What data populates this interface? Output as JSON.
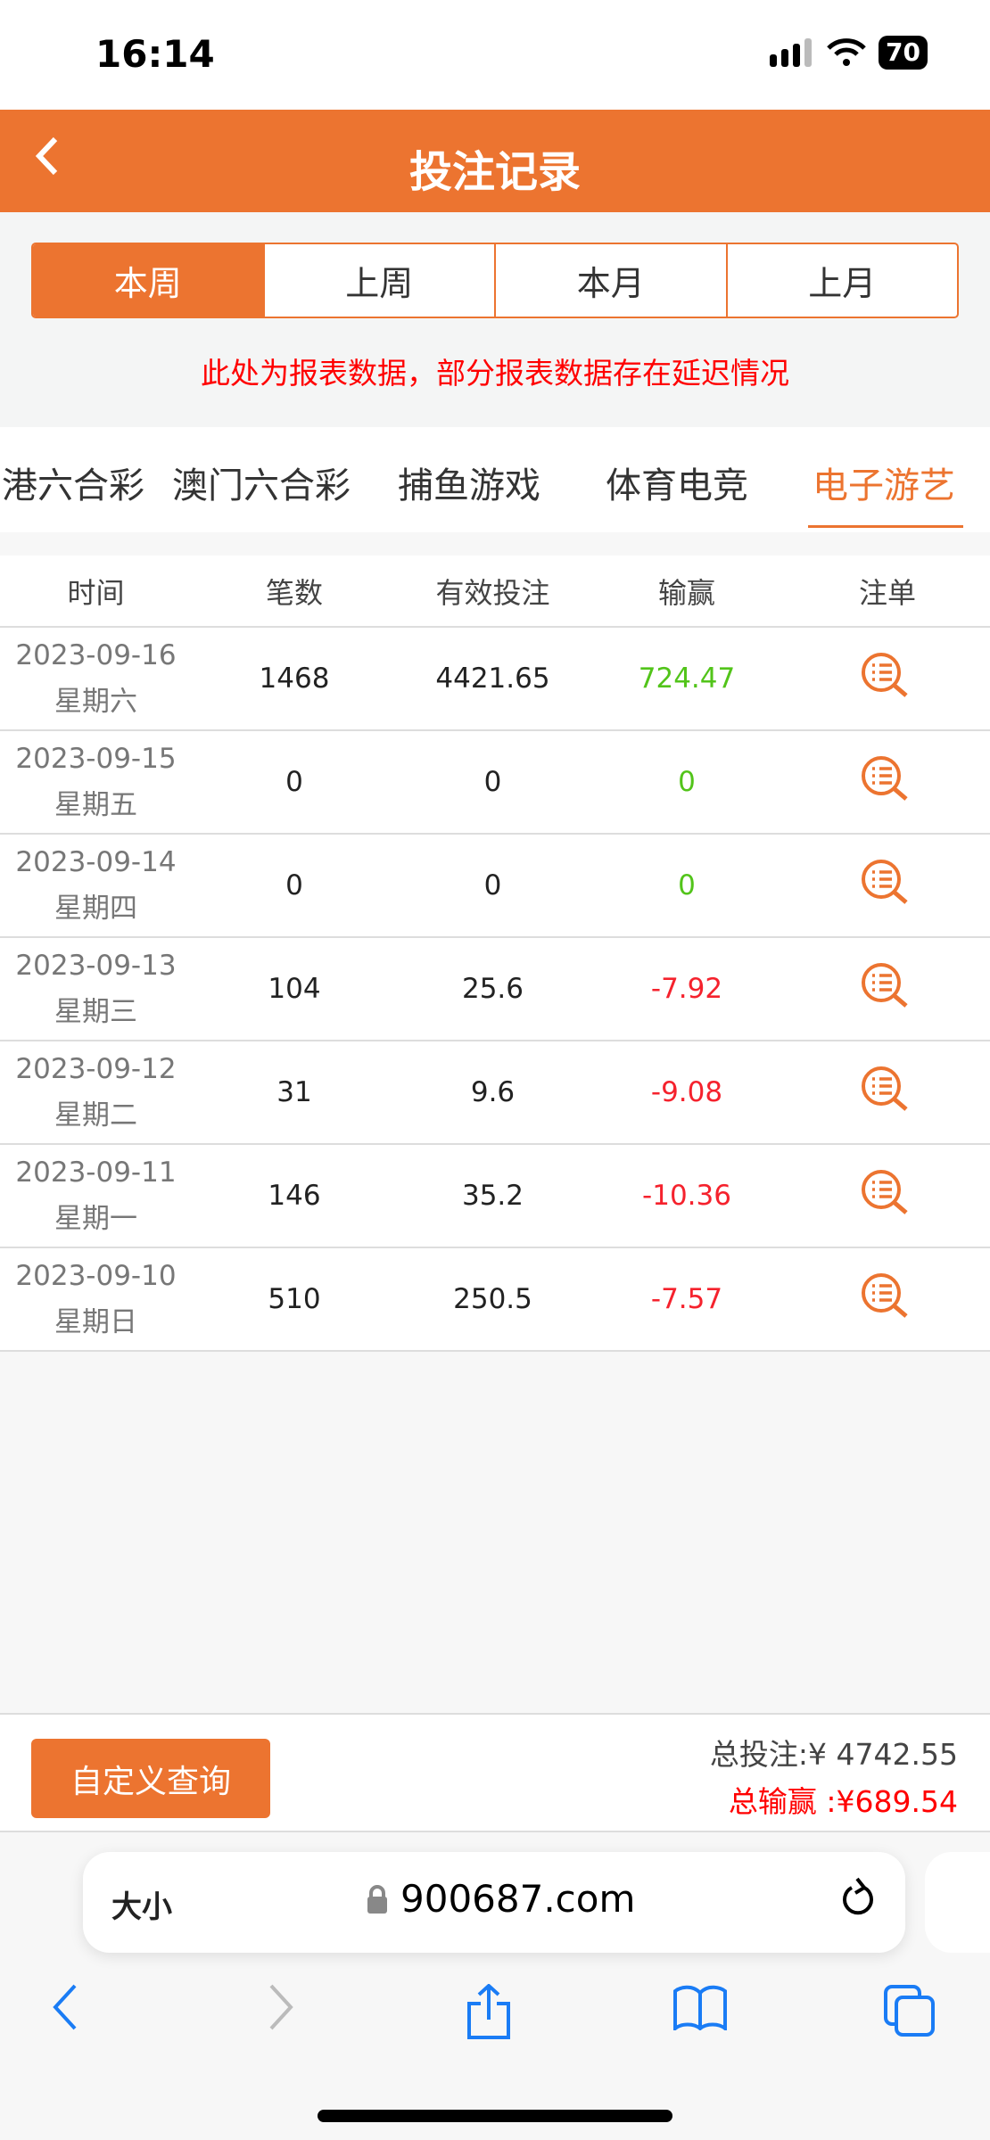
{
  "status": {
    "time": "16:14",
    "battery": "70"
  },
  "header": {
    "title": "投注记录"
  },
  "periods": [
    {
      "label": "本周",
      "active": true
    },
    {
      "label": "上周"
    },
    {
      "label": "本月"
    },
    {
      "label": "上月"
    }
  ],
  "notice": "此处为报表数据，部分报表数据存在延迟情况",
  "game_tabs": [
    "港六合彩",
    "澳门六合彩",
    "捕鱼游戏",
    "体育电竞",
    "电子游艺"
  ],
  "active_game_tab": "电子游艺",
  "table": {
    "headers": [
      "时间",
      "笔数",
      "有效投注",
      "输赢",
      "注单"
    ],
    "rows": [
      {
        "date": "2023-09-16",
        "weekday": "星期六",
        "count": "1468",
        "bet": "4421.65",
        "win": "724.47",
        "status": "win"
      },
      {
        "date": "2023-09-15",
        "weekday": "星期五",
        "count": "0",
        "bet": "0",
        "win": "0",
        "status": "win"
      },
      {
        "date": "2023-09-14",
        "weekday": "星期四",
        "count": "0",
        "bet": "0",
        "win": "0",
        "status": "win"
      },
      {
        "date": "2023-09-13",
        "weekday": "星期三",
        "count": "104",
        "bet": "25.6",
        "win": "-7.92",
        "status": "lose"
      },
      {
        "date": "2023-09-12",
        "weekday": "星期二",
        "count": "31",
        "bet": "9.6",
        "win": "-9.08",
        "status": "lose"
      },
      {
        "date": "2023-09-11",
        "weekday": "星期一",
        "count": "146",
        "bet": "35.2",
        "win": "-10.36",
        "status": "lose"
      },
      {
        "date": "2023-09-10",
        "weekday": "星期日",
        "count": "510",
        "bet": "250.5",
        "win": "-7.57",
        "status": "lose"
      }
    ]
  },
  "footer": {
    "query_label": "自定义查询",
    "total_bet": "总投注:¥ 4742.55",
    "total_win": "总输赢 :¥689.54"
  },
  "browser": {
    "aa": "大小",
    "url": "900687.com"
  },
  "colors": {
    "accent": "#ec7430",
    "win": "#52c41a",
    "lose": "#f5222d"
  }
}
